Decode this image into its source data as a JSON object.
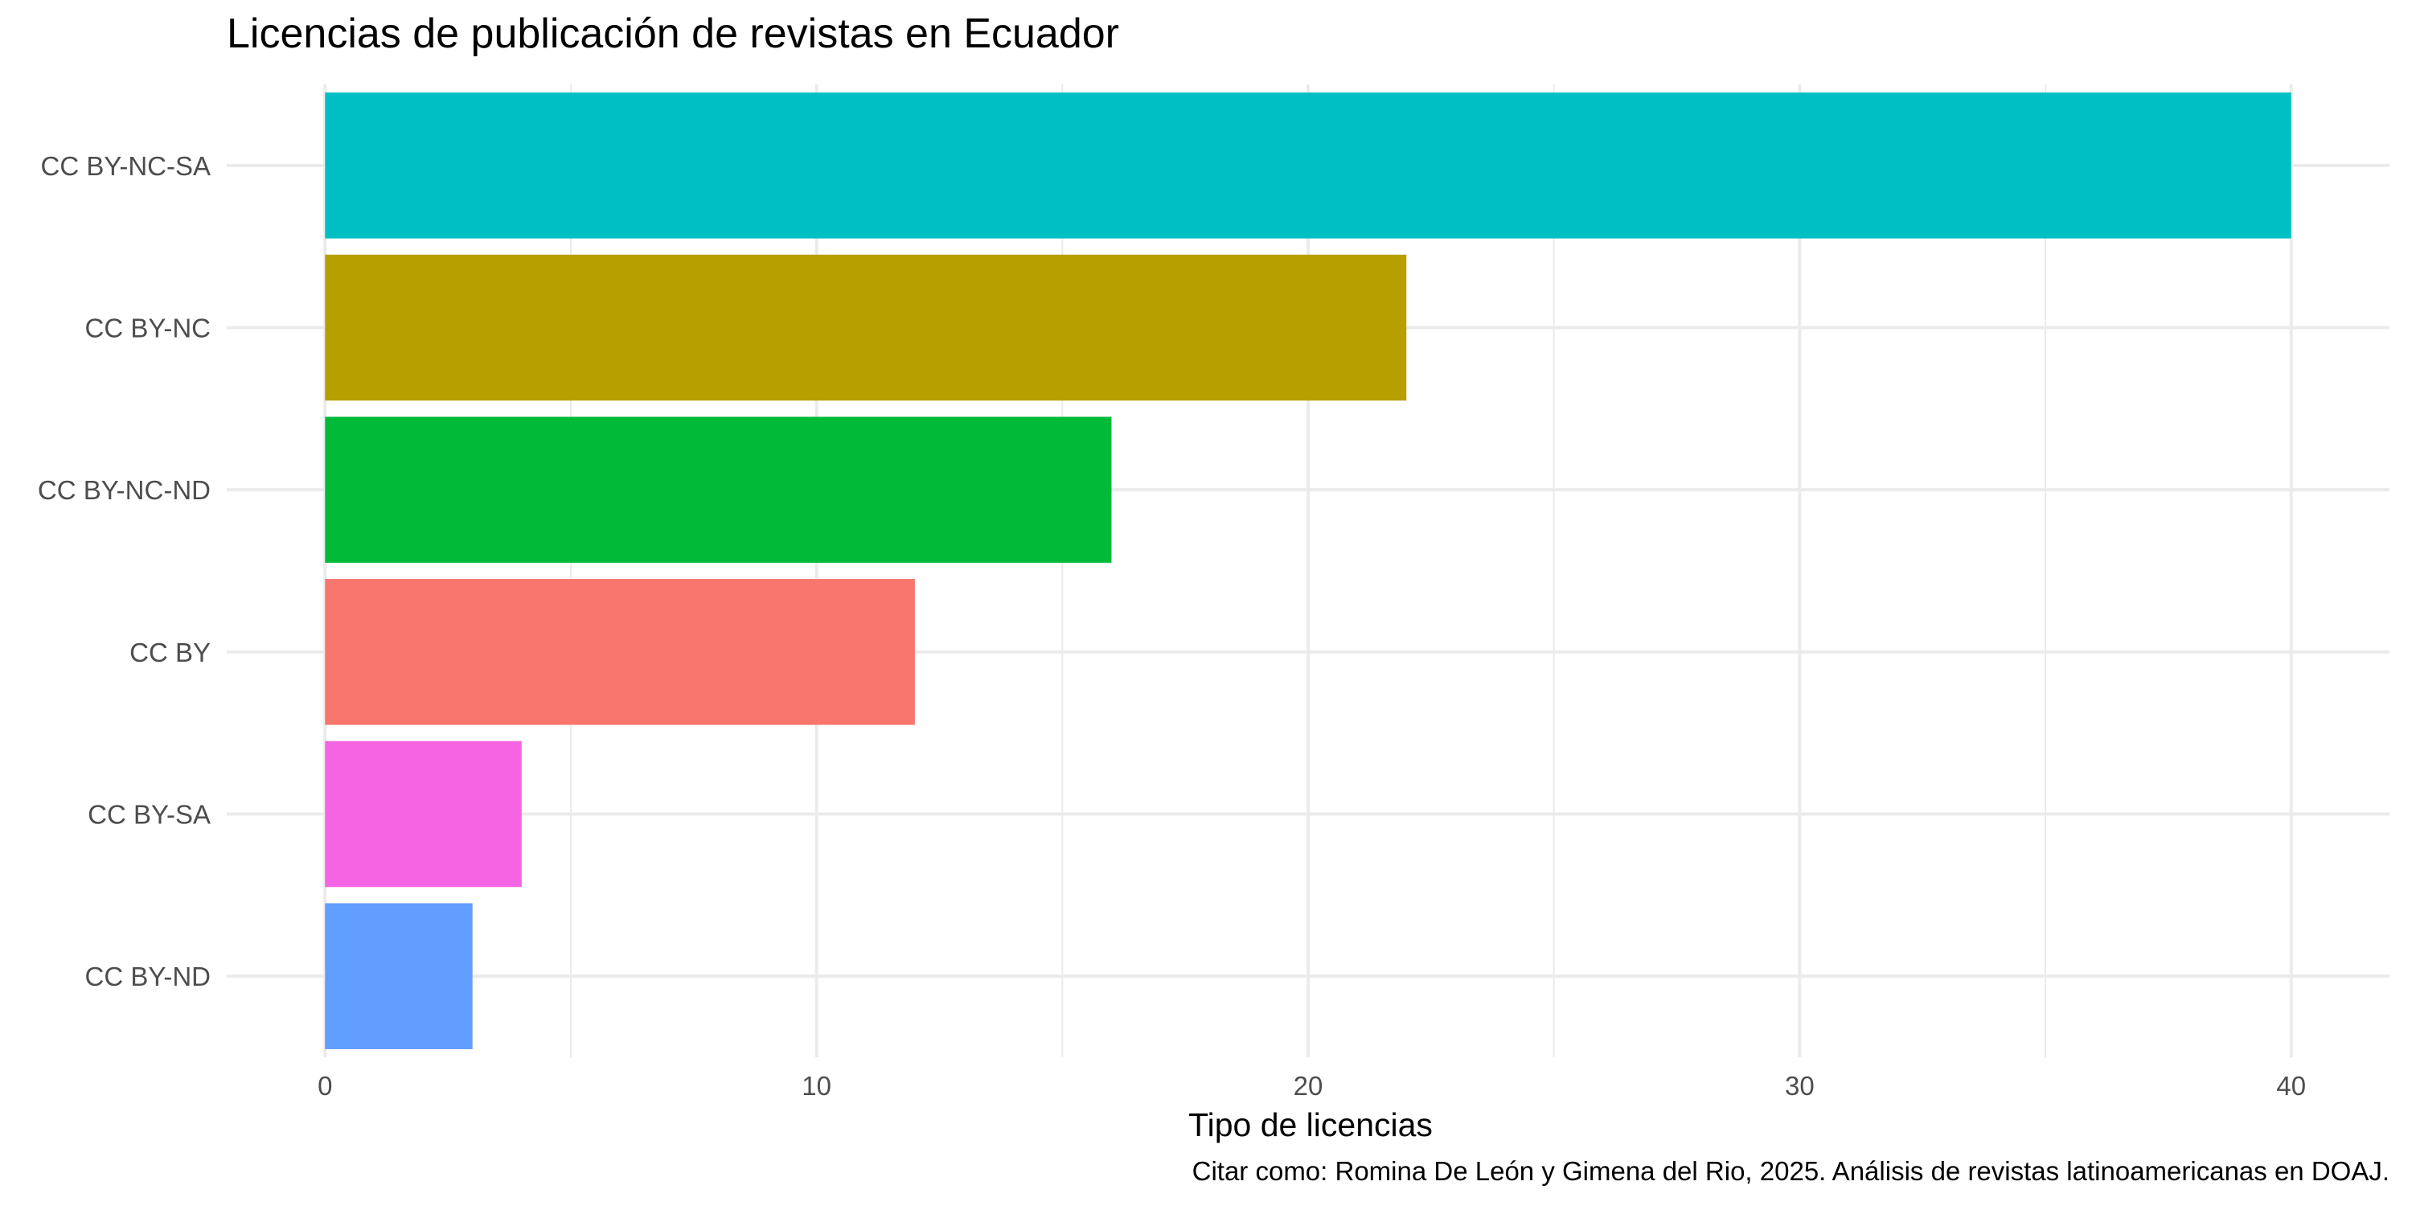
{
  "chart_data": {
    "type": "bar",
    "orientation": "horizontal",
    "title": "Licencias de publicación de revistas en Ecuador",
    "xlabel": "Tipo de licencias",
    "ylabel": "",
    "caption": "Citar como: Romina De León y Gimena del Rio, 2025. Análisis de revistas latinoamericanas en DOAJ.",
    "categories": [
      "CC BY-NC-SA",
      "CC BY-NC",
      "CC BY-NC-ND",
      "CC BY",
      "CC BY-SA",
      "CC BY-ND"
    ],
    "values": [
      40,
      22,
      16,
      12,
      4,
      3
    ],
    "colors": [
      "#00BFC4",
      "#B79F00",
      "#00BA38",
      "#F8766D",
      "#F564E3",
      "#619CFF"
    ],
    "xlim": [
      -2,
      42
    ],
    "xticks": [
      0,
      10,
      20,
      30,
      40
    ],
    "grid": true,
    "legend": "none"
  }
}
